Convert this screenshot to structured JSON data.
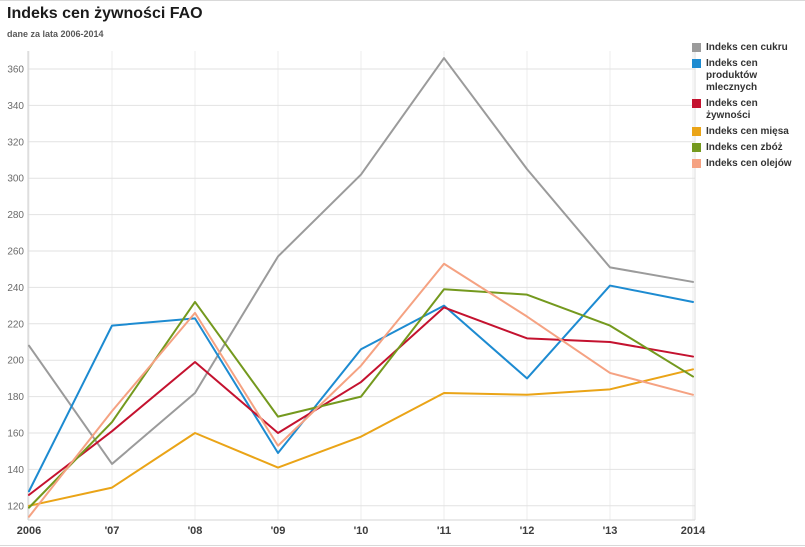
{
  "header": {
    "title": "Indeks cen żywności FAO",
    "subtitle": "dane za lata 2006-2014"
  },
  "chart_data": {
    "type": "line",
    "title": "Indeks cen żywności FAO",
    "subtitle": "dane za lata 2006-2014",
    "categories": [
      "2006",
      "'07",
      "'08",
      "'09",
      "'10",
      "'11",
      "'12",
      "'13",
      "2014"
    ],
    "years": [
      2006,
      2007,
      2008,
      2009,
      2010,
      2011,
      2012,
      2013,
      2014
    ],
    "series": [
      {
        "name": "Indeks cen cukru",
        "color": "#9b9b9b",
        "values": [
          208,
          143,
          182,
          257,
          302,
          366,
          305,
          251,
          243
        ]
      },
      {
        "name": "Indeks cen produktów mlecznych",
        "color": "#1d8bd1",
        "values": [
          128,
          219,
          223,
          149,
          206,
          230,
          190,
          241,
          232
        ]
      },
      {
        "name": "Indeks cen żywności",
        "color": "#c4122f",
        "values": [
          126,
          161,
          199,
          160,
          188,
          229,
          212,
          210,
          202
        ]
      },
      {
        "name": "Indeks cen mięsa",
        "color": "#eaa417",
        "values": [
          120,
          130,
          160,
          141,
          158,
          182,
          181,
          184,
          195
        ]
      },
      {
        "name": "Indeks cen zbóż",
        "color": "#74991e",
        "values": [
          119,
          166,
          232,
          169,
          180,
          239,
          236,
          219,
          191
        ]
      },
      {
        "name": "Indeks cen olejów",
        "color": "#f5a282",
        "values": [
          114,
          172,
          226,
          153,
          197,
          253,
          224,
          193,
          181
        ]
      }
    ],
    "yticks": [
      360,
      340,
      320,
      300,
      280,
      260,
      240,
      220,
      200,
      180,
      160,
      140,
      120
    ],
    "ylim": [
      110,
      370
    ],
    "grid": true,
    "legend_position": "right"
  }
}
